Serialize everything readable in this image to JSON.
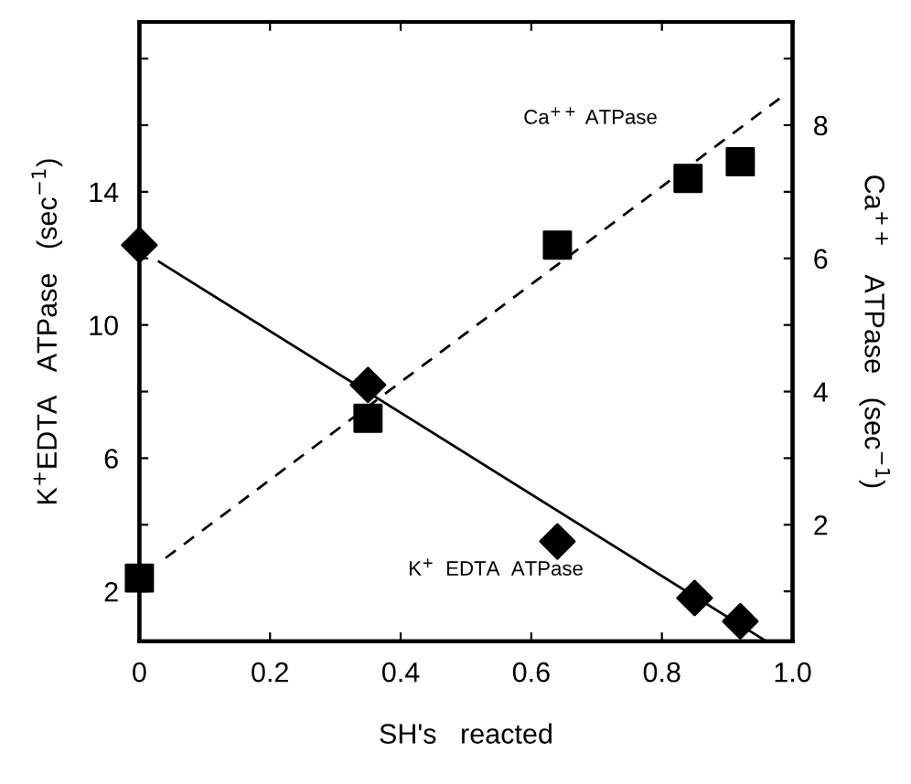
{
  "chart_data": {
    "type": "scatter",
    "xlabel": "SH's   reacted",
    "ylabel": "K$^{+}$EDTA   ATPase   (sec$^{−1}$)",
    "y2label": "Ca$^{++}$   ATPase   (sec$^{−1}$)",
    "xlim": [
      0,
      1
    ],
    "xticks": [
      0,
      0.2,
      0.4,
      0.6,
      0.8,
      {
        "value": 1,
        "label": "1.0"
      }
    ],
    "ylim": [
      0.5,
      19.1
    ],
    "yticks": [
      2,
      {
        "value": 4,
        "label": null
      },
      6,
      {
        "value": 8,
        "label": null
      },
      10,
      {
        "value": 12,
        "label": null
      },
      14,
      {
        "value": 16,
        "label": null
      },
      {
        "value": 18,
        "label": null
      }
    ],
    "y2lim": [
      0.25,
      9.55
    ],
    "y2ticks": [
      {
        "value": 1,
        "label": null
      },
      2,
      {
        "value": 3,
        "label": null
      },
      4,
      {
        "value": 5,
        "label": null
      },
      6,
      {
        "value": 7,
        "label": null
      },
      8,
      {
        "value": 9,
        "label": null
      }
    ],
    "grid": false,
    "legend": false,
    "series": [
      {
        "color": "#000000",
        "marker": "diamond",
        "x": [
          0,
          0.35,
          0.64,
          0.85,
          0.92
        ],
        "values": [
          12.4,
          8.2,
          3.5,
          1.8,
          1.1
        ]
      },
      {
        "axis": "y2",
        "color": "#000000",
        "marker": "square",
        "x": [
          0,
          0.35,
          0.64,
          0.84,
          0.92
        ],
        "values": [
          1.2,
          3.6,
          6.2,
          7.2,
          7.45
        ]
      },
      {
        "type": "line",
        "name": "K$^{+}$  EDTA  ATPase",
        "color": "#000000",
        "line_style": "solid",
        "marker": "none",
        "x": [
          0.03,
          0.96
        ],
        "values": [
          11.9,
          0.5
        ]
      },
      {
        "type": "line",
        "name": "Ca$^{++}$ ATPase",
        "axis": "y2",
        "color": "#000000",
        "line_style": "dashed",
        "marker": "none",
        "x": [
          0.04,
          0.98
        ],
        "values": [
          1.5,
          8.4
        ]
      }
    ]
  }
}
